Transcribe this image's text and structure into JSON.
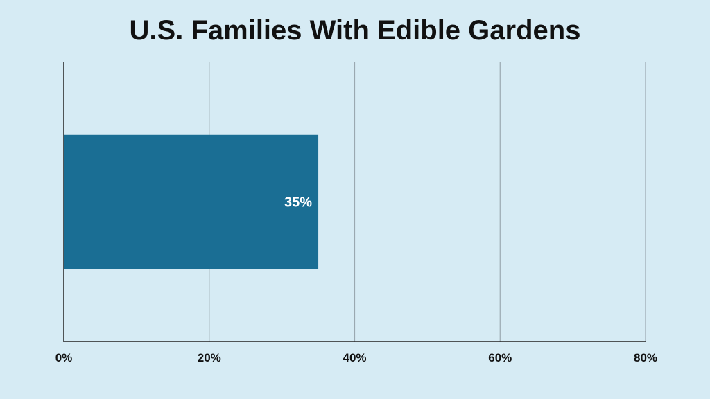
{
  "chart_data": {
    "type": "bar",
    "orientation": "horizontal",
    "title": "U.S. Families With Edible Gardens",
    "xlabel": "",
    "ylabel": "",
    "categories": [
      ""
    ],
    "values": [
      35
    ],
    "data_labels": [
      "35%"
    ],
    "xlim": [
      0,
      80
    ],
    "x_ticks": [
      0,
      20,
      40,
      60,
      80
    ],
    "x_tick_labels": [
      "0%",
      "20%",
      "40%",
      "60%",
      "80%"
    ],
    "grid": true,
    "legend": "none",
    "colors": {
      "background": "#d6ebf4",
      "bar": "#1a6e94",
      "grid": "#9aa8b0",
      "axis": "#222222"
    }
  }
}
